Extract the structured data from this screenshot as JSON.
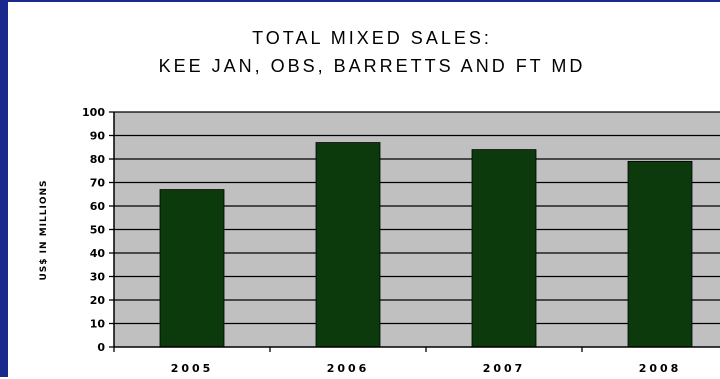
{
  "chart_data": {
    "type": "bar",
    "title": "TOTAL MIXED SALES:",
    "subtitle": "KEE JAN, OBS, BARRETTS AND FT MD",
    "xlabel": "",
    "ylabel": "US$ IN MILLIONS",
    "categories": [
      "2005",
      "2006",
      "2007",
      "2008"
    ],
    "values": [
      67,
      87,
      84,
      79
    ],
    "ylim": [
      0,
      100
    ],
    "yticks": [
      0,
      10,
      20,
      30,
      40,
      50,
      60,
      70,
      80,
      90,
      100
    ],
    "grid": true,
    "legend": "none",
    "colors": {
      "bar": "#0c3a0c",
      "plot_background": "#c0c0c0",
      "gridline": "#000000",
      "frame": "#1a2a8c"
    }
  }
}
